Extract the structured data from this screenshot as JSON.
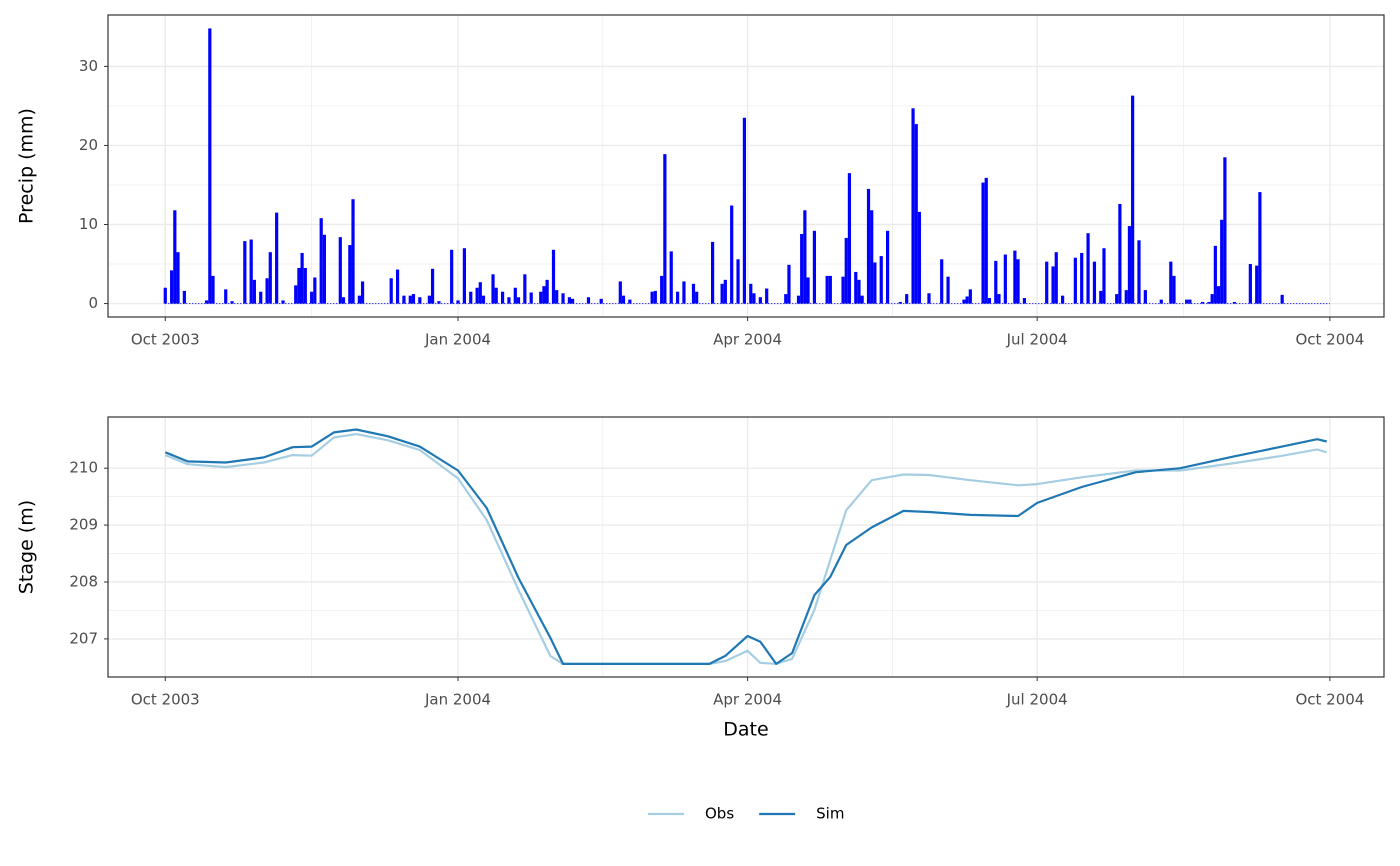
{
  "chart_data": [
    {
      "type": "bar",
      "ylabel": "Precip (mm)",
      "color": "#0000ff",
      "grid": true,
      "xlim": [
        "2003-09-13",
        "2004-10-18"
      ],
      "xticks": [
        {
          "value": "2003-10-01",
          "label": "Oct 2003"
        },
        {
          "value": "2004-01-01",
          "label": "Jan 2004"
        },
        {
          "value": "2004-04-01",
          "label": "Apr 2004"
        },
        {
          "value": "2004-07-01",
          "label": "Jul 2004"
        },
        {
          "value": "2004-10-01",
          "label": "Oct 2004"
        }
      ],
      "ylim": [
        -1.7,
        36.5
      ],
      "yticks": [
        0,
        10,
        20,
        30
      ],
      "x": [
        "2003-10-01",
        "2003-10-03",
        "2003-10-04",
        "2003-10-05",
        "2003-10-07",
        "2003-10-14",
        "2003-10-15",
        "2003-10-16",
        "2003-10-20",
        "2003-10-22",
        "2003-10-26",
        "2003-10-28",
        "2003-10-29",
        "2003-10-31",
        "2003-11-02",
        "2003-11-03",
        "2003-11-05",
        "2003-11-07",
        "2003-11-11",
        "2003-11-12",
        "2003-11-13",
        "2003-11-14",
        "2003-11-16",
        "2003-11-17",
        "2003-11-19",
        "2003-11-20",
        "2003-11-25",
        "2003-11-26",
        "2003-11-28",
        "2003-11-29",
        "2003-12-01",
        "2003-12-02",
        "2003-12-11",
        "2003-12-13",
        "2003-12-15",
        "2003-12-17",
        "2003-12-18",
        "2003-12-20",
        "2003-12-23",
        "2003-12-24",
        "2003-12-26",
        "2003-12-30",
        "2004-01-01",
        "2004-01-03",
        "2004-01-05",
        "2004-01-07",
        "2004-01-08",
        "2004-01-09",
        "2004-01-12",
        "2004-01-13",
        "2004-01-15",
        "2004-01-17",
        "2004-01-19",
        "2004-01-20",
        "2004-01-22",
        "2004-01-24",
        "2004-01-27",
        "2004-01-28",
        "2004-01-29",
        "2004-01-31",
        "2004-02-01",
        "2004-02-03",
        "2004-02-05",
        "2004-02-06",
        "2004-02-11",
        "2004-02-15",
        "2004-02-21",
        "2004-02-22",
        "2004-02-24",
        "2004-03-02",
        "2004-03-03",
        "2004-03-05",
        "2004-03-06",
        "2004-03-08",
        "2004-03-10",
        "2004-03-12",
        "2004-03-15",
        "2004-03-16",
        "2004-03-21",
        "2004-03-24",
        "2004-03-25",
        "2004-03-27",
        "2004-03-29",
        "2004-03-31",
        "2004-04-02",
        "2004-04-03",
        "2004-04-05",
        "2004-04-07",
        "2004-04-13",
        "2004-04-14",
        "2004-04-17",
        "2004-04-18",
        "2004-04-19",
        "2004-04-20",
        "2004-04-22",
        "2004-04-26",
        "2004-04-27",
        "2004-05-01",
        "2004-05-02",
        "2004-05-03",
        "2004-05-05",
        "2004-05-06",
        "2004-05-07",
        "2004-05-09",
        "2004-05-10",
        "2004-05-11",
        "2004-05-13",
        "2004-05-15",
        "2004-05-19",
        "2004-05-21",
        "2004-05-23",
        "2004-05-24",
        "2004-05-25",
        "2004-05-28",
        "2004-06-01",
        "2004-06-03",
        "2004-06-08",
        "2004-06-09",
        "2004-06-10",
        "2004-06-14",
        "2004-06-15",
        "2004-06-16",
        "2004-06-18",
        "2004-06-19",
        "2004-06-21",
        "2004-06-24",
        "2004-06-25",
        "2004-06-27",
        "2004-07-04",
        "2004-07-06",
        "2004-07-07",
        "2004-07-09",
        "2004-07-13",
        "2004-07-15",
        "2004-07-17",
        "2004-07-19",
        "2004-07-21",
        "2004-07-22",
        "2004-07-26",
        "2004-07-27",
        "2004-07-29",
        "2004-07-30",
        "2004-07-31",
        "2004-08-02",
        "2004-08-04",
        "2004-08-09",
        "2004-08-12",
        "2004-08-13",
        "2004-08-17",
        "2004-08-18",
        "2004-08-22",
        "2004-08-24",
        "2004-08-25",
        "2004-08-26",
        "2004-08-27",
        "2004-08-28",
        "2004-08-29",
        "2004-09-01",
        "2004-09-06",
        "2004-09-08",
        "2004-09-09",
        "2004-09-16"
      ],
      "values": [
        2,
        4.2,
        11.8,
        6.5,
        1.6,
        0.4,
        34.8,
        3.5,
        1.8,
        0.3,
        7.9,
        8.1,
        3,
        1.5,
        3.2,
        6.5,
        11.5,
        0.4,
        2.3,
        4.5,
        6.4,
        4.5,
        1.5,
        3.3,
        10.8,
        8.7,
        8.4,
        0.8,
        7.4,
        13.2,
        1,
        2.8,
        3.2,
        4.3,
        1,
        1,
        1.2,
        0.8,
        1,
        4.4,
        0.3,
        6.8,
        0.4,
        7,
        1.5,
        2,
        2.7,
        1,
        3.7,
        2,
        1.5,
        0.8,
        2,
        0.8,
        3.7,
        1.4,
        1.5,
        2.2,
        3,
        6.8,
        1.7,
        1.3,
        0.8,
        0.6,
        0.8,
        0.6,
        2.8,
        1,
        0.5,
        1.5,
        1.6,
        3.5,
        18.9,
        6.6,
        1.5,
        2.8,
        2.5,
        1.5,
        7.8,
        2.5,
        3,
        12.4,
        5.6,
        23.5,
        2.5,
        1.3,
        0.8,
        1.9,
        1.2,
        4.9,
        1,
        8.8,
        11.8,
        3.3,
        9.2,
        3.5,
        3.5,
        3.4,
        8.3,
        16.5,
        4,
        3,
        1,
        14.5,
        11.8,
        5.2,
        6,
        9.2,
        0.2,
        1.2,
        24.7,
        22.7,
        11.6,
        1.3,
        5.6,
        3.4,
        0.5,
        0.9,
        1.8,
        15.3,
        15.9,
        0.7,
        5.4,
        1.2,
        6.2,
        6.7,
        5.6,
        0.7,
        5.3,
        4.7,
        6.5,
        1,
        5.8,
        6.4,
        8.9,
        5.3,
        1.6,
        7,
        1.2,
        12.6,
        1.7,
        9.8,
        26.3,
        8,
        1.7,
        0.5,
        5.3,
        3.5,
        0.5,
        0.5,
        0.2,
        0.2,
        1.2,
        7.3,
        2.2,
        10.6,
        18.5,
        0.2,
        5,
        4.8,
        14.1,
        1.1
      ]
    },
    {
      "type": "line",
      "xlabel": "Date",
      "ylabel": "Stage (m)",
      "grid": true,
      "legend": "bottom",
      "xlim": [
        "2003-09-13",
        "2004-10-18"
      ],
      "xticks": [
        {
          "value": "2003-10-01",
          "label": "Oct 2003"
        },
        {
          "value": "2004-01-01",
          "label": "Jan 2004"
        },
        {
          "value": "2004-04-01",
          "label": "Apr 2004"
        },
        {
          "value": "2004-07-01",
          "label": "Jul 2004"
        },
        {
          "value": "2004-10-01",
          "label": "Oct 2004"
        }
      ],
      "ylim": [
        206.33,
        210.9
      ],
      "yticks": [
        207,
        208,
        209,
        210
      ],
      "x": [
        "2003-10-01",
        "2003-10-08",
        "2003-10-20",
        "2003-11-01",
        "2003-11-10",
        "2003-11-16",
        "2003-11-23",
        "2003-11-30",
        "2003-12-10",
        "2003-12-20",
        "2004-01-01",
        "2004-01-10",
        "2004-01-20",
        "2004-01-30",
        "2004-02-03",
        "2004-03-20",
        "2004-03-25",
        "2004-04-01",
        "2004-04-05",
        "2004-04-10",
        "2004-04-15",
        "2004-04-22",
        "2004-04-27",
        "2004-05-02",
        "2004-05-10",
        "2004-05-20",
        "2004-05-28",
        "2004-06-10",
        "2004-06-25",
        "2004-07-01",
        "2004-07-15",
        "2004-08-01",
        "2004-08-15",
        "2004-09-01",
        "2004-09-15",
        "2004-09-27",
        "2004-09-30"
      ],
      "series": [
        {
          "name": "Obs",
          "color": "#a6cee3",
          "values": [
            210.23,
            210.07,
            210.02,
            210.1,
            210.23,
            210.22,
            210.54,
            210.6,
            210.49,
            210.32,
            209.82,
            209.09,
            207.86,
            206.7,
            206.56,
            206.56,
            206.61,
            206.79,
            206.58,
            206.56,
            206.65,
            207.51,
            208.39,
            209.26,
            209.79,
            209.89,
            209.88,
            209.79,
            209.7,
            209.72,
            209.84,
            209.96,
            209.96,
            210.09,
            210.21,
            210.33,
            210.28
          ]
        },
        {
          "name": "Sim",
          "color": "#1f78b4",
          "values": [
            210.28,
            210.12,
            210.1,
            210.19,
            210.37,
            210.38,
            210.63,
            210.68,
            210.56,
            210.38,
            209.96,
            209.3,
            208.07,
            207.02,
            206.56,
            206.56,
            206.7,
            207.05,
            206.95,
            206.56,
            206.75,
            207.77,
            208.09,
            208.65,
            208.96,
            209.25,
            209.23,
            209.18,
            209.16,
            209.39,
            209.67,
            209.93,
            210,
            210.21,
            210.37,
            210.51,
            210.47
          ]
        }
      ]
    }
  ]
}
